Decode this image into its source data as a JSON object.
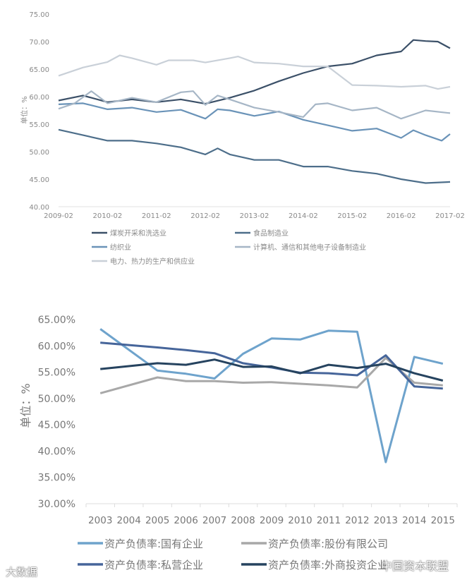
{
  "chart_data": [
    {
      "type": "line",
      "title": "",
      "ylabel": "单位：%",
      "xlabel": "",
      "ylim": [
        40,
        75
      ],
      "yticks": [
        "40.00",
        "45.00",
        "50.00",
        "55.00",
        "60.00",
        "65.00",
        "70.00",
        "75.00"
      ],
      "xlim": [
        2009,
        2017
      ],
      "xticks": [
        "2009-02",
        "2010-02",
        "2011-02",
        "2012-02",
        "2013-02",
        "2014-02",
        "2015-02",
        "2016-02",
        "2017-02"
      ],
      "x_note": "x = year + (month-2)/12, tick YYYY-02 at YYYY",
      "grid": false,
      "legend": "bottom",
      "series": [
        {
          "name": "煤炭开采和洗选业",
          "color": "#3b5068",
          "x": [
            2009,
            2009.5,
            2010,
            2010.5,
            2011,
            2011.5,
            2012,
            2012.5,
            2013,
            2013.5,
            2014,
            2014.5,
            2015,
            2015.5,
            2016,
            2016.25,
            2016.5,
            2016.75,
            2017
          ],
          "values": [
            59.3,
            60.2,
            59.0,
            59.5,
            59.0,
            59.5,
            58.7,
            59.8,
            61.1,
            62.8,
            64.3,
            65.5,
            66.0,
            67.5,
            68.2,
            70.3,
            70.1,
            70.0,
            68.8
          ]
        },
        {
          "name": "食品制造业",
          "color": "#4d6e8a",
          "x": [
            2009,
            2009.5,
            2010,
            2010.5,
            2011,
            2011.5,
            2012,
            2012.25,
            2012.5,
            2013,
            2013.5,
            2014,
            2014.5,
            2015,
            2015.5,
            2016,
            2016.5,
            2017
          ],
          "values": [
            54.0,
            53.0,
            52.0,
            52.0,
            51.5,
            50.8,
            49.5,
            50.6,
            49.5,
            48.5,
            48.5,
            47.3,
            47.3,
            46.5,
            46.0,
            45.0,
            44.3,
            44.5
          ]
        },
        {
          "name": "纺织业",
          "color": "#6a93b8",
          "x": [
            2009,
            2009.5,
            2010,
            2010.5,
            2011,
            2011.5,
            2012,
            2012.25,
            2012.5,
            2013,
            2013.5,
            2014,
            2014.5,
            2015,
            2015.5,
            2016,
            2016.25,
            2016.5,
            2016.83,
            2017
          ],
          "values": [
            58.6,
            58.8,
            57.7,
            58.0,
            57.2,
            57.6,
            56.0,
            57.7,
            57.5,
            56.5,
            57.3,
            55.8,
            54.8,
            53.8,
            54.2,
            52.5,
            53.9,
            53.0,
            52.0,
            53.2
          ]
        },
        {
          "name": "计算机、通信和其他电子设备制造业",
          "color": "#a6b6c6",
          "x": [
            2009,
            2009.33,
            2009.67,
            2010,
            2010.5,
            2011,
            2011.5,
            2011.75,
            2012,
            2012.25,
            2012.5,
            2013,
            2013.5,
            2014,
            2014.25,
            2014.5,
            2015,
            2015.5,
            2016,
            2016.5,
            2017
          ],
          "values": [
            57.8,
            58.8,
            61.0,
            58.8,
            59.8,
            59.0,
            60.8,
            61.0,
            58.5,
            60.2,
            59.5,
            58.0,
            57.2,
            56.3,
            58.6,
            58.8,
            57.5,
            58.0,
            56.0,
            57.5,
            57.0
          ]
        },
        {
          "name": "电力、热力的生产和供应业",
          "color": "#c9d0d8",
          "x": [
            2009,
            2009.5,
            2010,
            2010.25,
            2010.5,
            2011,
            2011.25,
            2011.75,
            2012,
            2012.5,
            2012.67,
            2013,
            2013.5,
            2014,
            2014.5,
            2015,
            2015.5,
            2016,
            2016.5,
            2016.75,
            2017
          ],
          "values": [
            63.8,
            65.3,
            66.3,
            67.5,
            67.0,
            65.8,
            66.6,
            66.6,
            66.2,
            67.0,
            67.3,
            66.2,
            66.0,
            65.5,
            65.5,
            62.1,
            62.0,
            61.8,
            62.0,
            61.4,
            61.8
          ]
        }
      ]
    },
    {
      "type": "line",
      "title": "",
      "ylabel": "单位：%",
      "xlabel": "",
      "ylim": [
        30,
        65
      ],
      "yticks": [
        "30.00%",
        "35.00%",
        "40.00%",
        "45.00%",
        "50.00%",
        "55.00%",
        "60.00%",
        "65.00%"
      ],
      "categories": [
        "2003",
        "2004",
        "2005",
        "2006",
        "2007",
        "2008",
        "2009",
        "2010",
        "2011",
        "2012",
        "2013",
        "2014",
        "2015"
      ],
      "grid": false,
      "legend": "bottom",
      "series": [
        {
          "name": "资产负债率:国有企业",
          "color": "#6ea3cc",
          "values": [
            63.2,
            null,
            55.3,
            54.7,
            53.8,
            58.5,
            61.4,
            61.2,
            62.9,
            62.7,
            37.9,
            57.9,
            56.6
          ]
        },
        {
          "name": "资产负债率:股份有限公司",
          "color": "#a8a8a8",
          "values": [
            51.0,
            null,
            54.0,
            53.3,
            53.3,
            53.0,
            53.1,
            52.8,
            52.5,
            52.1,
            57.7,
            53.0,
            52.5
          ]
        },
        {
          "name": "资产负债率:私营企业",
          "color": "#46659a",
          "values": [
            60.6,
            null,
            59.7,
            59.2,
            58.6,
            56.7,
            55.9,
            54.9,
            54.8,
            54.4,
            58.2,
            52.3,
            51.9
          ]
        },
        {
          "name": "资产负债率:外商投资企业",
          "color": "#26435f",
          "values": [
            55.6,
            null,
            56.7,
            56.4,
            57.4,
            56.0,
            56.1,
            54.8,
            56.4,
            55.8,
            56.6,
            54.8,
            53.4
          ]
        }
      ]
    }
  ],
  "watermarks": {
    "left": "大数据",
    "right": "中国资本联盟"
  }
}
